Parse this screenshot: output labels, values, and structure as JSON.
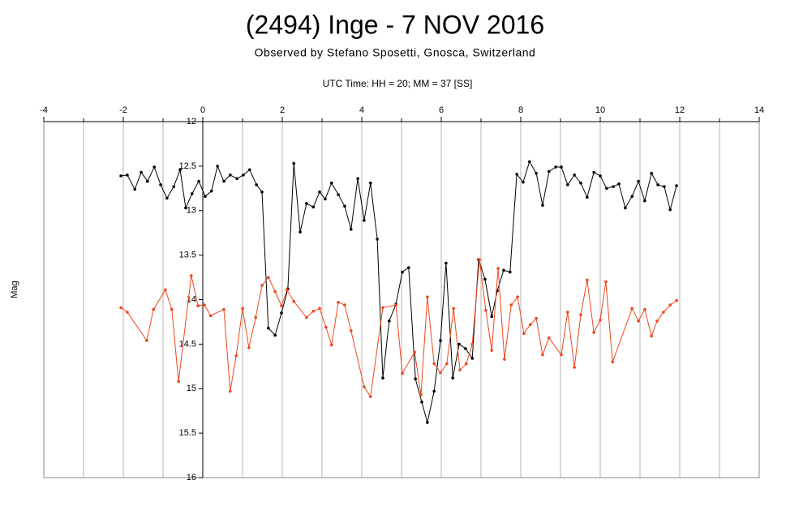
{
  "chart_data": {
    "type": "line",
    "title": "(2494) Inge - 7 NOV 2016",
    "subtitle": "Observed by Stefano Sposetti, Gnosca, Switzerland",
    "xlabel": "UTC Time: HH = 20; MM = 37 [SS]",
    "ylabel": "Mag",
    "xlim": [
      -4,
      14
    ],
    "xticks": [
      -4,
      -2,
      0,
      2,
      4,
      6,
      8,
      10,
      12,
      14
    ],
    "xgrid": [
      -3,
      -2,
      -1,
      0,
      1,
      2,
      3,
      4,
      5,
      6,
      7,
      8,
      9,
      10,
      11,
      12,
      13
    ],
    "ylim": [
      12,
      16
    ],
    "yticks": [
      12,
      12.5,
      13,
      13.5,
      14,
      14.5,
      15,
      15.5,
      16
    ],
    "y_inverted": true,
    "y_axis_crossing": 0,
    "grid": true,
    "series": [
      {
        "color": "#000000",
        "x": [
          -2.06,
          -1.9,
          -1.71,
          -1.55,
          -1.39,
          -1.22,
          -1.06,
          -0.9,
          -0.73,
          -0.57,
          -0.43,
          -0.27,
          -0.1,
          0.06,
          0.22,
          0.37,
          0.53,
          0.69,
          0.86,
          1.02,
          1.18,
          1.35,
          1.49,
          1.65,
          1.82,
          1.98,
          2.14,
          2.29,
          2.45,
          2.61,
          2.78,
          2.94,
          3.08,
          3.24,
          3.41,
          3.57,
          3.73,
          3.9,
          4.06,
          4.22,
          4.39,
          4.53,
          4.69,
          4.86,
          5.02,
          5.18,
          5.35,
          5.51,
          5.65,
          5.82,
          5.98,
          6.12,
          6.29,
          6.45,
          6.61,
          6.78,
          6.94,
          7.1,
          7.27,
          7.41,
          7.57,
          7.73,
          7.9,
          8.06,
          8.22,
          8.39,
          8.55,
          8.71,
          8.88,
          9.02,
          9.18,
          9.35,
          9.51,
          9.67,
          9.84,
          10.0,
          10.16,
          10.33,
          10.47,
          10.63,
          10.8,
          10.96,
          11.12,
          11.29,
          11.45,
          11.61,
          11.76,
          11.92
        ],
        "values": [
          12.61,
          12.6,
          12.76,
          12.57,
          12.67,
          12.51,
          12.71,
          12.86,
          12.73,
          12.54,
          12.97,
          12.81,
          12.67,
          12.84,
          12.78,
          12.5,
          12.67,
          12.6,
          12.64,
          12.6,
          12.54,
          12.71,
          12.79,
          14.32,
          14.4,
          14.15,
          13.88,
          12.47,
          13.24,
          12.92,
          12.96,
          12.79,
          12.87,
          12.69,
          12.82,
          12.95,
          13.21,
          12.64,
          13.11,
          12.69,
          13.32,
          14.88,
          14.24,
          14.05,
          13.69,
          13.64,
          14.89,
          15.15,
          15.38,
          15.03,
          14.46,
          13.59,
          14.88,
          14.5,
          14.55,
          14.66,
          13.55,
          13.77,
          14.19,
          13.9,
          13.67,
          13.69,
          12.59,
          12.68,
          12.45,
          12.58,
          12.94,
          12.56,
          12.51,
          12.51,
          12.71,
          12.6,
          12.69,
          12.85,
          12.57,
          12.61,
          12.75,
          12.73,
          12.7,
          12.97,
          12.84,
          12.67,
          12.89,
          12.58,
          12.71,
          12.73,
          12.99,
          12.72
        ]
      },
      {
        "color": "#f0461e",
        "x": [
          -2.06,
          -1.9,
          -1.41,
          -1.24,
          -0.94,
          -0.78,
          -0.61,
          -0.29,
          -0.12,
          0.04,
          0.2,
          0.53,
          0.69,
          0.84,
          1.0,
          1.16,
          1.33,
          1.49,
          1.65,
          1.82,
          1.98,
          2.12,
          2.29,
          2.61,
          2.78,
          2.94,
          3.1,
          3.24,
          3.41,
          3.57,
          3.73,
          4.06,
          4.22,
          4.53,
          4.86,
          5.02,
          5.33,
          5.49,
          5.65,
          5.82,
          5.98,
          6.14,
          6.31,
          6.47,
          6.63,
          6.78,
          6.96,
          7.12,
          7.27,
          7.43,
          7.59,
          7.76,
          7.92,
          8.08,
          8.24,
          8.39,
          8.55,
          8.71,
          9.02,
          9.18,
          9.35,
          9.51,
          9.67,
          9.84,
          10.0,
          10.14,
          10.31,
          10.8,
          10.96,
          11.12,
          11.29,
          11.43,
          11.59,
          11.76,
          11.92
        ],
        "values": [
          14.09,
          14.14,
          14.46,
          14.11,
          13.89,
          14.11,
          14.92,
          13.73,
          14.07,
          14.06,
          14.18,
          14.11,
          15.03,
          14.63,
          14.1,
          14.54,
          14.2,
          13.84,
          13.75,
          13.91,
          14.07,
          13.89,
          14.02,
          14.2,
          14.13,
          14.1,
          14.31,
          14.51,
          14.03,
          14.06,
          14.35,
          14.98,
          15.09,
          14.09,
          14.06,
          14.83,
          14.59,
          15.07,
          13.97,
          14.72,
          14.82,
          14.72,
          14.1,
          14.79,
          14.72,
          14.5,
          13.55,
          14.12,
          14.57,
          13.65,
          14.67,
          14.06,
          13.97,
          14.38,
          14.28,
          14.21,
          14.62,
          14.43,
          14.62,
          14.14,
          14.76,
          14.17,
          13.78,
          14.37,
          14.23,
          13.8,
          14.7,
          14.1,
          14.24,
          14.11,
          14.41,
          14.24,
          14.14,
          14.06,
          14.01
        ]
      }
    ]
  }
}
